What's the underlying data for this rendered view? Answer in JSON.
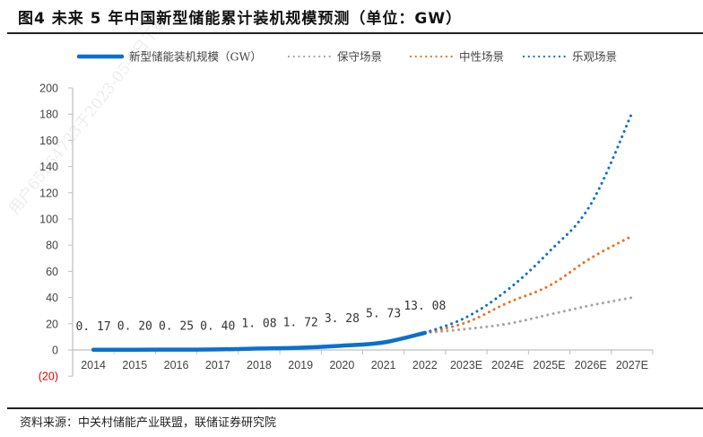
{
  "title": "图4  未来 5 年中国新型储能累计装机规模预测（单位：GW）",
  "source": "资料来源：中关村储能产业联盟，联储证券研究院",
  "watermark": "用户65264723于2023-05-1日下载",
  "colors": {
    "actual": "#0b6fcf",
    "conservative": "#a6a6a6",
    "neutral": "#f0701e",
    "optimistic": "#0b6fcf",
    "axis": "#bfbfbf",
    "negative_tick": "#e00000"
  },
  "chart_data": {
    "type": "line",
    "title": "未来 5 年中国新型储能累计装机规模预测（单位：GW）",
    "xlabel": "",
    "ylabel": "",
    "ylim": [
      -20,
      200
    ],
    "yticks": [
      200,
      180,
      160,
      140,
      120,
      100,
      80,
      60,
      40,
      20,
      0,
      -20
    ],
    "ytick_labels": [
      "200",
      "180",
      "160",
      "140",
      "120",
      "100",
      "80",
      "60",
      "40",
      "20",
      "0",
      "(20)"
    ],
    "grid": false,
    "legend_position": "top",
    "categories": [
      "2014",
      "2015",
      "2016",
      "2017",
      "2018",
      "2019",
      "2020",
      "2021",
      "2022",
      "2023E",
      "2024E",
      "2025E",
      "2026E",
      "2027E"
    ],
    "series": [
      {
        "name": "新型储能装机规模（GW）",
        "key": "actual",
        "style": "solid",
        "values": [
          0.17,
          0.2,
          0.25,
          0.4,
          1.08,
          1.72,
          3.28,
          5.73,
          13.08,
          null,
          null,
          null,
          null,
          null
        ],
        "data_labels": [
          "0.17",
          "0.20",
          "0.25",
          "0.40",
          "1.08",
          "1.72",
          "3.28",
          "5.73",
          "13.08"
        ]
      },
      {
        "name": "保守场景",
        "key": "conservative",
        "style": "dotted",
        "values": [
          null,
          null,
          null,
          null,
          null,
          null,
          null,
          null,
          13.08,
          16,
          20,
          27,
          34,
          40
        ]
      },
      {
        "name": "中性场景",
        "key": "neutral",
        "style": "dotted",
        "values": [
          null,
          null,
          null,
          null,
          null,
          null,
          null,
          null,
          13.08,
          21,
          36,
          49,
          70,
          87
        ]
      },
      {
        "name": "乐观场景",
        "key": "optimistic",
        "style": "dotted",
        "values": [
          null,
          null,
          null,
          null,
          null,
          null,
          null,
          null,
          13.08,
          25,
          46,
          75,
          111,
          181
        ]
      }
    ]
  }
}
